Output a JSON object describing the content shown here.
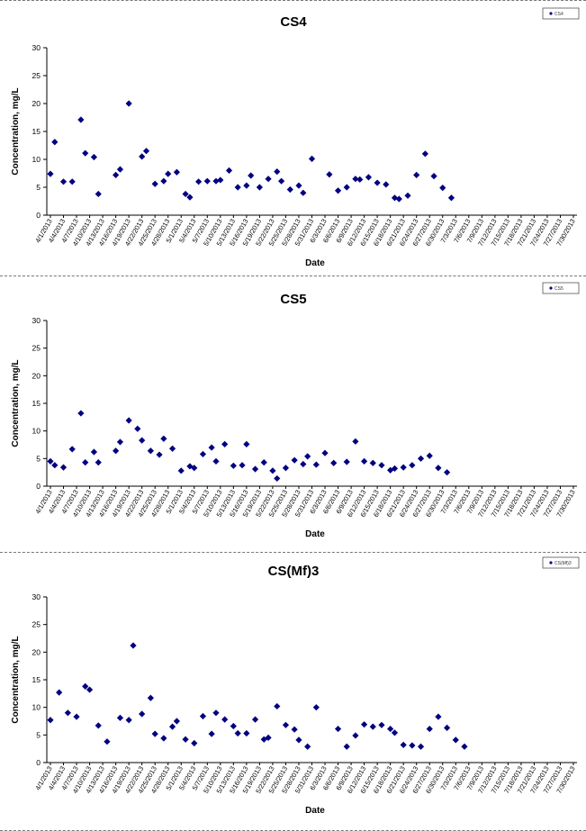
{
  "marker_color": "#000080",
  "chart_data": [
    {
      "type": "scatter",
      "title": "CS4",
      "xlabel": "Date",
      "ylabel": "Concentration, mg/L",
      "ylim": [
        0,
        30
      ],
      "yticks": [
        0,
        5,
        10,
        15,
        20,
        25,
        30
      ],
      "grid": false,
      "legend": {
        "position": "top-right",
        "entries": [
          "CS4"
        ]
      },
      "xtick_labels": [
        "4/1/2013",
        "4/4/2013",
        "4/7/2013",
        "4/10/2013",
        "4/13/2013",
        "4/16/2013",
        "4/19/2013",
        "4/22/2013",
        "4/25/2013",
        "4/28/2013",
        "5/1/2013",
        "5/4/2013",
        "5/7/2013",
        "5/10/2013",
        "5/13/2013",
        "5/16/2013",
        "5/19/2013",
        "5/22/2013",
        "5/25/2013",
        "5/28/2013",
        "5/31/2013",
        "6/3/2013",
        "6/6/2013",
        "6/9/2013",
        "6/12/2013",
        "6/15/2013",
        "6/18/2013",
        "6/21/2013",
        "6/24/2013",
        "6/27/2013",
        "6/30/2013",
        "7/3/2013",
        "7/6/2013",
        "7/9/2013",
        "7/12/2013",
        "7/15/2013",
        "7/18/2013",
        "7/21/2013",
        "7/24/2013",
        "7/27/2013",
        "7/30/2013"
      ],
      "points": [
        [
          "4/1/2013",
          7.4
        ],
        [
          "4/2/2013",
          13.1
        ],
        [
          "4/4/2013",
          6.0
        ],
        [
          "4/6/2013",
          6.0
        ],
        [
          "4/8/2013",
          17.1
        ],
        [
          "4/9/2013",
          11.1
        ],
        [
          "4/11/2013",
          10.4
        ],
        [
          "4/12/2013",
          3.8
        ],
        [
          "4/16/2013",
          7.2
        ],
        [
          "4/17/2013",
          8.2
        ],
        [
          "4/19/2013",
          20.0
        ],
        [
          "4/22/2013",
          10.5
        ],
        [
          "4/23/2013",
          11.5
        ],
        [
          "4/25/2013",
          5.6
        ],
        [
          "4/27/2013",
          6.1
        ],
        [
          "4/28/2013",
          7.4
        ],
        [
          "4/30/2013",
          7.7
        ],
        [
          "5/2/2013",
          3.8
        ],
        [
          "5/3/2013",
          3.2
        ],
        [
          "5/5/2013",
          6.0
        ],
        [
          "5/7/2013",
          6.1
        ],
        [
          "5/9/2013",
          6.1
        ],
        [
          "5/10/2013",
          6.3
        ],
        [
          "5/12/2013",
          8.0
        ],
        [
          "5/14/2013",
          5.0
        ],
        [
          "5/16/2013",
          5.3
        ],
        [
          "5/17/2013",
          7.1
        ],
        [
          "5/19/2013",
          5.0
        ],
        [
          "5/21/2013",
          6.5
        ],
        [
          "5/23/2013",
          7.8
        ],
        [
          "5/24/2013",
          6.1
        ],
        [
          "5/26/2013",
          4.6
        ],
        [
          "5/28/2013",
          5.3
        ],
        [
          "5/29/2013",
          4.0
        ],
        [
          "5/31/2013",
          10.1
        ],
        [
          "6/4/2013",
          7.3
        ],
        [
          "6/6/2013",
          4.4
        ],
        [
          "6/8/2013",
          5.0
        ],
        [
          "6/10/2013",
          6.5
        ],
        [
          "6/11/2013",
          6.4
        ],
        [
          "6/13/2013",
          6.8
        ],
        [
          "6/15/2013",
          5.8
        ],
        [
          "6/17/2013",
          5.5
        ],
        [
          "6/19/2013",
          3.1
        ],
        [
          "6/20/2013",
          2.9
        ],
        [
          "6/22/2013",
          3.5
        ],
        [
          "6/24/2013",
          7.2
        ],
        [
          "6/26/2013",
          11.0
        ],
        [
          "6/28/2013",
          7.0
        ],
        [
          "6/30/2013",
          4.9
        ],
        [
          "7/2/2013",
          3.1
        ]
      ]
    },
    {
      "type": "scatter",
      "title": "CS5",
      "xlabel": "Date",
      "ylabel": "Concentration, mg/L",
      "ylim": [
        0,
        30
      ],
      "yticks": [
        0,
        5,
        10,
        15,
        20,
        25,
        30
      ],
      "grid": false,
      "legend": {
        "position": "top-right",
        "entries": [
          "CS5"
        ]
      },
      "xtick_labels": [
        "4/1/2013",
        "4/4/2013",
        "4/7/2013",
        "4/10/2013",
        "4/13/2013",
        "4/16/2013",
        "4/19/2013",
        "4/22/2013",
        "4/25/2013",
        "4/28/2013",
        "5/1/2013",
        "5/4/2013",
        "5/7/2013",
        "5/10/2013",
        "5/13/2013",
        "5/16/2013",
        "5/19/2013",
        "5/22/2013",
        "5/25/2013",
        "5/28/2013",
        "5/31/2013",
        "6/3/2013",
        "6/6/2013",
        "6/9/2013",
        "6/12/2013",
        "6/15/2013",
        "6/18/2013",
        "6/21/2013",
        "6/24/2013",
        "6/27/2013",
        "6/30/2013",
        "7/3/2013",
        "7/6/2013",
        "7/9/2013",
        "7/12/2013",
        "7/15/2013",
        "7/18/2013",
        "7/21/2013",
        "7/24/2013",
        "7/27/2013",
        "7/30/2013"
      ],
      "points": [
        [
          "4/1/2013",
          4.5
        ],
        [
          "4/2/2013",
          3.8
        ],
        [
          "4/4/2013",
          3.4
        ],
        [
          "4/6/2013",
          6.7
        ],
        [
          "4/8/2013",
          13.2
        ],
        [
          "4/9/2013",
          4.3
        ],
        [
          "4/11/2013",
          6.2
        ],
        [
          "4/12/2013",
          4.3
        ],
        [
          "4/16/2013",
          6.4
        ],
        [
          "4/17/2013",
          8.0
        ],
        [
          "4/19/2013",
          11.9
        ],
        [
          "4/21/2013",
          10.4
        ],
        [
          "4/22/2013",
          8.3
        ],
        [
          "4/24/2013",
          6.4
        ],
        [
          "4/26/2013",
          5.7
        ],
        [
          "4/27/2013",
          8.6
        ],
        [
          "4/29/2013",
          6.8
        ],
        [
          "5/1/2013",
          2.8
        ],
        [
          "5/3/2013",
          3.6
        ],
        [
          "5/4/2013",
          3.3
        ],
        [
          "5/6/2013",
          5.8
        ],
        [
          "5/8/2013",
          7.0
        ],
        [
          "5/9/2013",
          4.5
        ],
        [
          "5/11/2013",
          7.6
        ],
        [
          "5/13/2013",
          3.7
        ],
        [
          "5/15/2013",
          3.8
        ],
        [
          "5/16/2013",
          7.6
        ],
        [
          "5/18/2013",
          3.1
        ],
        [
          "5/20/2013",
          4.3
        ],
        [
          "5/22/2013",
          2.8
        ],
        [
          "5/23/2013",
          1.4
        ],
        [
          "5/25/2013",
          3.3
        ],
        [
          "5/27/2013",
          4.7
        ],
        [
          "5/29/2013",
          4.0
        ],
        [
          "5/30/2013",
          5.4
        ],
        [
          "6/1/2013",
          3.9
        ],
        [
          "6/3/2013",
          6.0
        ],
        [
          "6/5/2013",
          4.2
        ],
        [
          "6/8/2013",
          4.4
        ],
        [
          "6/10/2013",
          8.1
        ],
        [
          "6/12/2013",
          4.5
        ],
        [
          "6/14/2013",
          4.2
        ],
        [
          "6/16/2013",
          3.8
        ],
        [
          "6/18/2013",
          2.9
        ],
        [
          "6/19/2013",
          3.2
        ],
        [
          "6/21/2013",
          3.4
        ],
        [
          "6/23/2013",
          3.8
        ],
        [
          "6/25/2013",
          5.0
        ],
        [
          "6/27/2013",
          5.5
        ],
        [
          "6/29/2013",
          3.3
        ],
        [
          "7/1/2013",
          2.5
        ]
      ]
    },
    {
      "type": "scatter",
      "title": "CS(Mf)3",
      "xlabel": "Date",
      "ylabel": "Concentration, mg/L",
      "ylim": [
        0,
        30
      ],
      "yticks": [
        0,
        5,
        10,
        15,
        20,
        25,
        30
      ],
      "grid": false,
      "legend": {
        "position": "top-right",
        "entries": [
          "CS(Mf)3"
        ]
      },
      "xtick_labels": [
        "4/1/2013",
        "4/4/2013",
        "4/7/2013",
        "4/10/2013",
        "4/13/2013",
        "4/16/2013",
        "4/19/2013",
        "4/22/2013",
        "4/25/2013",
        "4/28/2013",
        "5/1/2013",
        "5/4/2013",
        "5/7/2013",
        "5/10/2013",
        "5/13/2013",
        "5/16/2013",
        "5/19/2013",
        "5/22/2013",
        "5/25/2013",
        "5/28/2013",
        "5/31/2013",
        "6/3/2013",
        "6/6/2013",
        "6/9/2013",
        "6/12/2013",
        "6/15/2013",
        "6/18/2013",
        "6/21/2013",
        "6/24/2013",
        "6/27/2013",
        "6/30/2013",
        "7/3/2013",
        "7/6/2013",
        "7/9/2013",
        "7/12/2013",
        "7/15/2013",
        "7/18/2013",
        "7/21/2013",
        "7/24/2013",
        "7/27/2013",
        "7/30/2013"
      ],
      "points": [
        [
          "4/1/2013",
          7.7
        ],
        [
          "4/3/2013",
          12.7
        ],
        [
          "4/5/2013",
          9.0
        ],
        [
          "4/7/2013",
          8.3
        ],
        [
          "4/9/2013",
          13.8
        ],
        [
          "4/10/2013",
          13.2
        ],
        [
          "4/12/2013",
          6.7
        ],
        [
          "4/14/2013",
          3.8
        ],
        [
          "4/17/2013",
          8.1
        ],
        [
          "4/19/2013",
          7.7
        ],
        [
          "4/20/2013",
          21.2
        ],
        [
          "4/22/2013",
          8.8
        ],
        [
          "4/24/2013",
          11.7
        ],
        [
          "4/25/2013",
          5.2
        ],
        [
          "4/27/2013",
          4.4
        ],
        [
          "4/29/2013",
          6.5
        ],
        [
          "4/30/2013",
          7.5
        ],
        [
          "5/2/2013",
          4.2
        ],
        [
          "5/4/2013",
          3.5
        ],
        [
          "5/6/2013",
          8.4
        ],
        [
          "5/8/2013",
          5.2
        ],
        [
          "5/9/2013",
          9.0
        ],
        [
          "5/11/2013",
          7.8
        ],
        [
          "5/13/2013",
          6.6
        ],
        [
          "5/14/2013",
          5.3
        ],
        [
          "5/16/2013",
          5.3
        ],
        [
          "5/18/2013",
          7.8
        ],
        [
          "5/20/2013",
          4.2
        ],
        [
          "5/21/2013",
          4.5
        ],
        [
          "5/23/2013",
          10.2
        ],
        [
          "5/25/2013",
          6.8
        ],
        [
          "5/27/2013",
          6.0
        ],
        [
          "5/28/2013",
          4.1
        ],
        [
          "5/30/2013",
          2.9
        ],
        [
          "6/1/2013",
          10.0
        ],
        [
          "6/6/2013",
          6.1
        ],
        [
          "6/8/2013",
          2.9
        ],
        [
          "6/10/2013",
          4.9
        ],
        [
          "6/12/2013",
          6.9
        ],
        [
          "6/14/2013",
          6.5
        ],
        [
          "6/16/2013",
          6.8
        ],
        [
          "6/18/2013",
          6.1
        ],
        [
          "6/19/2013",
          5.4
        ],
        [
          "6/21/2013",
          3.2
        ],
        [
          "6/23/2013",
          3.1
        ],
        [
          "6/25/2013",
          2.9
        ],
        [
          "6/27/2013",
          6.1
        ],
        [
          "6/29/2013",
          8.3
        ],
        [
          "7/1/2013",
          6.3
        ],
        [
          "7/3/2013",
          4.1
        ],
        [
          "7/5/2013",
          2.9
        ]
      ]
    }
  ]
}
